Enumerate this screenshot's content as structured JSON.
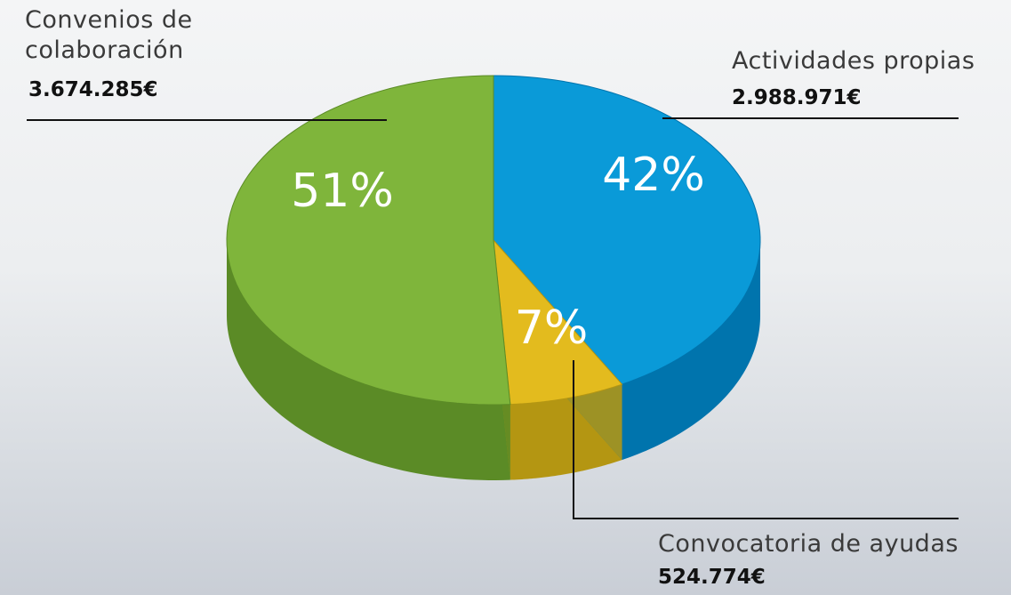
{
  "chart_data": {
    "type": "pie",
    "categories": [
      "Actividades propias",
      "Convocatoria de ayudas",
      "Convenios de colaboración"
    ],
    "values": [
      42,
      7,
      51
    ],
    "value_labels": [
      "42%",
      "7%",
      "51%"
    ],
    "amount_labels": [
      "2.988.971€",
      "524.774€",
      "3.674.285€"
    ],
    "colors": [
      "#0a9ad8",
      "#e3bb1e",
      "#7fb53b"
    ],
    "side_colors": [
      "#0074ad",
      "#b49612",
      "#5b8b26"
    ]
  }
}
